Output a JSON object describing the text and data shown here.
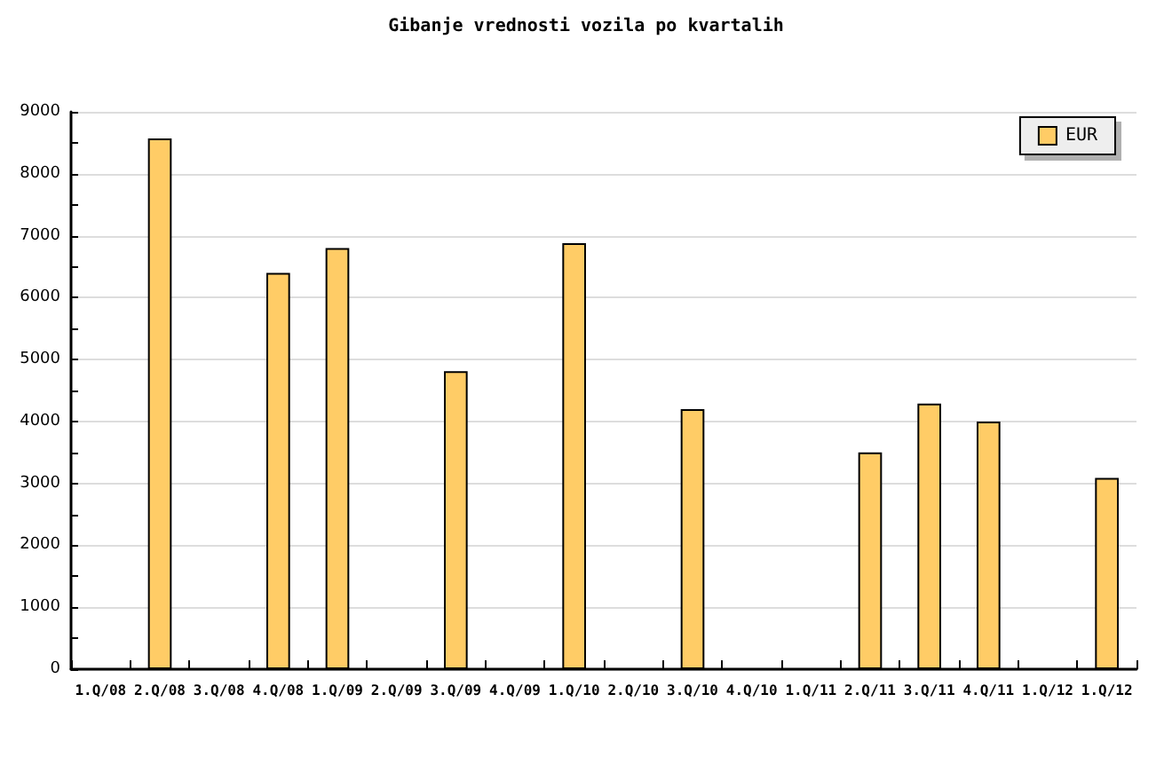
{
  "chart_data": {
    "type": "bar",
    "title": "Gibanje vrednosti vozila po kvartalih",
    "categories": [
      "1.Q/08",
      "2.Q/08",
      "3.Q/08",
      "4.Q/08",
      "1.Q/09",
      "2.Q/09",
      "3.Q/09",
      "4.Q/09",
      "1.Q/10",
      "2.Q/10",
      "3.Q/10",
      "4.Q/10",
      "1.Q/11",
      "2.Q/11",
      "3.Q/11",
      "4.Q/11",
      "1.Q/12",
      "1.Q/12"
    ],
    "series": [
      {
        "name": "EUR",
        "color": "#ffcc66",
        "values": [
          null,
          8570,
          null,
          6400,
          6800,
          null,
          4810,
          null,
          6880,
          null,
          4200,
          null,
          null,
          3500,
          4290,
          4000,
          null,
          3090
        ]
      }
    ],
    "ylim": [
      0,
      9000
    ],
    "yticks": [
      0,
      {
        "value": 500,
        "label": null
      },
      1000,
      {
        "value": 1500,
        "label": null
      },
      2000,
      {
        "value": 2500,
        "label": null
      },
      3000,
      {
        "value": 3500,
        "label": null
      },
      4000,
      {
        "value": 4500,
        "label": null
      },
      5000,
      {
        "value": 5500,
        "label": null
      },
      6000,
      {
        "value": 6500,
        "label": null
      },
      7000,
      {
        "value": 7500,
        "label": null
      },
      8000,
      {
        "value": 8500,
        "label": null
      },
      9000
    ],
    "grid": "y",
    "legend": "top right"
  }
}
